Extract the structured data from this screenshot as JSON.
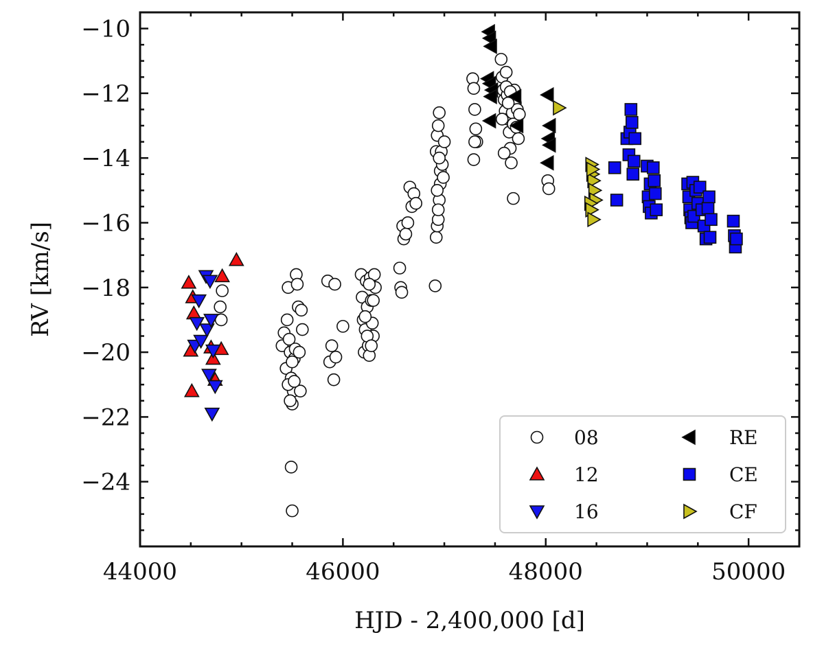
{
  "chart_data": {
    "type": "scatter",
    "title": "",
    "xlabel": "HJD - 2,400,000 [d]",
    "ylabel": "RV [km/s]",
    "xlim": [
      44000,
      50500
    ],
    "ylim": [
      -26,
      -9.5
    ],
    "xticks": [
      44000,
      46000,
      48000,
      50000
    ],
    "xtick_labels": [
      "44000",
      "46000",
      "48000",
      "50000"
    ],
    "yticks": [
      -24,
      -22,
      -20,
      -18,
      -16,
      -14,
      -12,
      -10
    ],
    "ytick_labels": [
      "−24",
      "−22",
      "−20",
      "−18",
      "−16",
      "−14",
      "−12",
      "−10"
    ],
    "grid": false,
    "legend_position": "lower-right",
    "series": [
      {
        "name": "08",
        "marker": "circle",
        "color": "#ffffff",
        "points": [
          [
            44810,
            -18.1
          ],
          [
            44790,
            -18.6
          ],
          [
            44800,
            -19.0
          ],
          [
            45400,
            -19.8
          ],
          [
            45420,
            -19.4
          ],
          [
            45440,
            -20.5
          ],
          [
            45450,
            -19.0
          ],
          [
            45460,
            -18.0
          ],
          [
            45470,
            -19.6
          ],
          [
            45480,
            -20.0
          ],
          [
            45490,
            -20.8
          ],
          [
            45500,
            -21.6
          ],
          [
            45510,
            -21.2
          ],
          [
            45520,
            -20.2
          ],
          [
            45530,
            -19.9
          ],
          [
            45540,
            -17.6
          ],
          [
            45550,
            -17.9
          ],
          [
            45560,
            -18.6
          ],
          [
            45570,
            -20.0
          ],
          [
            45580,
            -21.2
          ],
          [
            45590,
            -18.7
          ],
          [
            45600,
            -19.3
          ],
          [
            45460,
            -21.0
          ],
          [
            45480,
            -21.5
          ],
          [
            45500,
            -20.3
          ],
          [
            45520,
            -20.9
          ],
          [
            45490,
            -23.55
          ],
          [
            45500,
            -24.9
          ],
          [
            45850,
            -17.8
          ],
          [
            45870,
            -20.3
          ],
          [
            45890,
            -19.8
          ],
          [
            45910,
            -20.85
          ],
          [
            45920,
            -17.9
          ],
          [
            45930,
            -20.15
          ],
          [
            46000,
            -19.2
          ],
          [
            46180,
            -17.6
          ],
          [
            46190,
            -18.3
          ],
          [
            46200,
            -19.0
          ],
          [
            46210,
            -20.0
          ],
          [
            46220,
            -19.3
          ],
          [
            46230,
            -17.8
          ],
          [
            46240,
            -18.6
          ],
          [
            46250,
            -19.8
          ],
          [
            46260,
            -20.1
          ],
          [
            46270,
            -17.7
          ],
          [
            46280,
            -18.4
          ],
          [
            46290,
            -19.1
          ],
          [
            46300,
            -19.5
          ],
          [
            46310,
            -17.6
          ],
          [
            46320,
            -18.0
          ],
          [
            46220,
            -18.9
          ],
          [
            46240,
            -19.5
          ],
          [
            46260,
            -17.9
          ],
          [
            46280,
            -19.8
          ],
          [
            46300,
            -18.4
          ],
          [
            46560,
            -17.4
          ],
          [
            46570,
            -18.0
          ],
          [
            46580,
            -18.15
          ],
          [
            46590,
            -16.1
          ],
          [
            46600,
            -16.5
          ],
          [
            46620,
            -16.35
          ],
          [
            46640,
            -16.0
          ],
          [
            46660,
            -14.9
          ],
          [
            46680,
            -15.5
          ],
          [
            46700,
            -15.1
          ],
          [
            46720,
            -15.4
          ],
          [
            46910,
            -17.95
          ],
          [
            46920,
            -16.45
          ],
          [
            46930,
            -16.1
          ],
          [
            46940,
            -15.9
          ],
          [
            46950,
            -15.3
          ],
          [
            46960,
            -14.8
          ],
          [
            46920,
            -13.8
          ],
          [
            46930,
            -13.3
          ],
          [
            46940,
            -13.0
          ],
          [
            46950,
            -12.6
          ],
          [
            46960,
            -14.4
          ],
          [
            46970,
            -13.8
          ],
          [
            46980,
            -14.2
          ],
          [
            46990,
            -14.6
          ],
          [
            47000,
            -13.5
          ],
          [
            46930,
            -15.0
          ],
          [
            46940,
            -15.6
          ],
          [
            46950,
            -14.0
          ],
          [
            47280,
            -11.55
          ],
          [
            47290,
            -11.85
          ],
          [
            47300,
            -12.5
          ],
          [
            47310,
            -13.1
          ],
          [
            47320,
            -13.5
          ],
          [
            47290,
            -14.05
          ],
          [
            47300,
            -13.5
          ],
          [
            47560,
            -10.95
          ],
          [
            47570,
            -11.5
          ],
          [
            47580,
            -11.9
          ],
          [
            47590,
            -12.2
          ],
          [
            47600,
            -12.55
          ],
          [
            47610,
            -11.35
          ],
          [
            47620,
            -12.05
          ],
          [
            47630,
            -12.8
          ],
          [
            47640,
            -13.2
          ],
          [
            47650,
            -13.7
          ],
          [
            47660,
            -14.15
          ],
          [
            47670,
            -12.6
          ],
          [
            47680,
            -12.95
          ],
          [
            47690,
            -11.9
          ],
          [
            47700,
            -12.3
          ],
          [
            47710,
            -13.05
          ],
          [
            47720,
            -12.5
          ],
          [
            47730,
            -13.4
          ],
          [
            47740,
            -12.65
          ],
          [
            47680,
            -15.25
          ],
          [
            47570,
            -12.8
          ],
          [
            47590,
            -13.85
          ],
          [
            47610,
            -11.8
          ],
          [
            47630,
            -12.3
          ],
          [
            47650,
            -11.95
          ],
          [
            48020,
            -14.7
          ],
          [
            48030,
            -14.95
          ]
        ]
      },
      {
        "name": "12",
        "marker": "triangle-up",
        "color": "#ee1111",
        "points": [
          [
            44480,
            -17.85
          ],
          [
            44500,
            -19.95
          ],
          [
            44520,
            -18.3
          ],
          [
            44530,
            -18.8
          ],
          [
            44510,
            -21.2
          ],
          [
            44700,
            -19.85
          ],
          [
            44720,
            -20.2
          ],
          [
            44740,
            -20.85
          ],
          [
            44800,
            -19.9
          ],
          [
            44810,
            -17.65
          ],
          [
            44950,
            -17.15
          ]
        ]
      },
      {
        "name": "16",
        "marker": "triangle-down",
        "color": "#1515ee",
        "points": [
          [
            44540,
            -19.8
          ],
          [
            44560,
            -19.1
          ],
          [
            44580,
            -18.4
          ],
          [
            44600,
            -19.65
          ],
          [
            44650,
            -17.65
          ],
          [
            44660,
            -19.3
          ],
          [
            44680,
            -20.7
          ],
          [
            44690,
            -17.8
          ],
          [
            44700,
            -19.0
          ],
          [
            44720,
            -19.95
          ],
          [
            44740,
            -21.05
          ],
          [
            44710,
            -21.9
          ]
        ]
      },
      {
        "name": "RE",
        "marker": "triangle-left",
        "color": "#000000",
        "points": [
          [
            47440,
            -10.1
          ],
          [
            47450,
            -10.3
          ],
          [
            47460,
            -10.55
          ],
          [
            47430,
            -11.55
          ],
          [
            47450,
            -11.7
          ],
          [
            47470,
            -11.9
          ],
          [
            47460,
            -12.1
          ],
          [
            47450,
            -12.85
          ],
          [
            47700,
            -12.1
          ],
          [
            47720,
            -13.0
          ],
          [
            48020,
            -12.05
          ],
          [
            48040,
            -13.0
          ],
          [
            48030,
            -13.4
          ],
          [
            48040,
            -13.6
          ],
          [
            48020,
            -14.15
          ]
        ]
      },
      {
        "name": "CE",
        "marker": "square",
        "color": "#0a0aee",
        "points": [
          [
            48680,
            -14.3
          ],
          [
            48700,
            -15.3
          ],
          [
            48800,
            -13.4
          ],
          [
            48820,
            -13.9
          ],
          [
            48830,
            -13.2
          ],
          [
            48840,
            -12.5
          ],
          [
            48850,
            -12.9
          ],
          [
            48860,
            -14.5
          ],
          [
            48870,
            -14.1
          ],
          [
            48880,
            -13.4
          ],
          [
            49000,
            -14.25
          ],
          [
            49010,
            -15.2
          ],
          [
            49020,
            -15.5
          ],
          [
            49030,
            -14.8
          ],
          [
            49040,
            -15.7
          ],
          [
            49060,
            -14.3
          ],
          [
            49070,
            -14.7
          ],
          [
            49080,
            -15.1
          ],
          [
            49090,
            -15.6
          ],
          [
            49400,
            -14.8
          ],
          [
            49410,
            -15.2
          ],
          [
            49420,
            -15.6
          ],
          [
            49430,
            -15.85
          ],
          [
            49440,
            -16.0
          ],
          [
            49450,
            -14.75
          ],
          [
            49460,
            -15.8
          ],
          [
            49480,
            -15.0
          ],
          [
            49500,
            -15.4
          ],
          [
            49520,
            -14.9
          ],
          [
            49540,
            -15.6
          ],
          [
            49560,
            -16.1
          ],
          [
            49580,
            -16.5
          ],
          [
            49600,
            -15.55
          ],
          [
            49610,
            -15.2
          ],
          [
            49620,
            -16.45
          ],
          [
            49630,
            -15.9
          ],
          [
            49850,
            -15.95
          ],
          [
            49860,
            -16.4
          ],
          [
            49870,
            -16.75
          ],
          [
            49880,
            -16.5
          ]
        ]
      },
      {
        "name": "CF",
        "marker": "triangle-right",
        "color": "#c8c020",
        "points": [
          [
            48130,
            -12.45
          ],
          [
            48450,
            -14.2
          ],
          [
            48460,
            -14.5
          ],
          [
            48470,
            -14.7
          ],
          [
            48480,
            -15.0
          ],
          [
            48490,
            -15.3
          ],
          [
            48440,
            -15.4
          ],
          [
            48450,
            -15.6
          ],
          [
            48470,
            -15.9
          ],
          [
            48460,
            -14.35
          ]
        ]
      }
    ],
    "legend_entries": [
      "08",
      "12",
      "16",
      "RE",
      "CE",
      "CF"
    ]
  }
}
